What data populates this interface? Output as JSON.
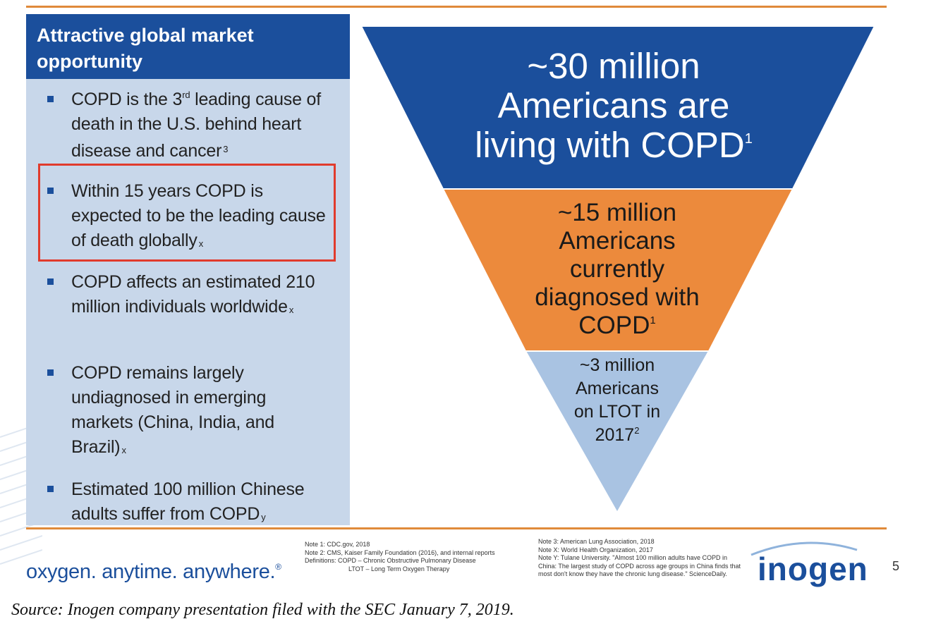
{
  "panel": {
    "title": "Attractive global market opportunity",
    "bullets": [
      {
        "pre": "COPD is the 3",
        "sup": "rd",
        "post": " leading cause of death in the U.S. behind heart disease and cancer",
        "note": "3"
      },
      {
        "text": "Within 15 years COPD is expected to be the leading cause of death globally",
        "note": "x"
      },
      {
        "text": "COPD affects an estimated 210 million individuals worldwide",
        "note": "x"
      },
      {
        "text": "COPD remains largely undiagnosed in emerging markets (China, India, and Brazil)",
        "note": "x"
      },
      {
        "text": "Estimated 100 million Chinese adults suffer from COPD",
        "note": "y"
      }
    ]
  },
  "funnel": {
    "tiers": [
      {
        "lines": [
          "~30 million",
          "Americans are",
          "living with COPD"
        ],
        "note": "1",
        "color": "#1b4f9c"
      },
      {
        "lines": [
          "~15 million",
          "Americans",
          "currently",
          "diagnosed with",
          "COPD"
        ],
        "note": "1",
        "color": "#ec8a3c"
      },
      {
        "lines": [
          "~3 million",
          "Americans",
          "on LTOT in",
          "2017"
        ],
        "note": "2",
        "color": "#a9c3e2"
      }
    ]
  },
  "footer": {
    "tagline": "oxygen. anytime. anywhere.",
    "tagline_mark": "®",
    "notes_left": [
      "Note 1: CDC.gov, 2018",
      "Note 2: CMS, Kaiser Family Foundation (2016), and internal reports",
      "Definitions: COPD – Chronic Obstructive Pulmonary Disease",
      "LTOT – Long Term Oxygen Therapy"
    ],
    "notes_right": [
      "Note 3: American Lung Association, 2018",
      "Note X: World Health Organization, 2017",
      "Note Y: Tulane University. \"Almost 100 million adults have COPD in China: The largest study of COPD across age groups in China finds that most don't know they have the chronic lung disease.\" ScienceDaily."
    ],
    "logo": "inogen",
    "page_number": "5"
  },
  "caption": "Source: Inogen company presentation filed with the SEC January 7, 2019.",
  "colors": {
    "navy": "#1b4f9c",
    "orange": "#ec8a3c",
    "light_blue": "#a9c3e2",
    "panel_bg": "#c8d7ea",
    "highlight": "#e13b2d"
  }
}
